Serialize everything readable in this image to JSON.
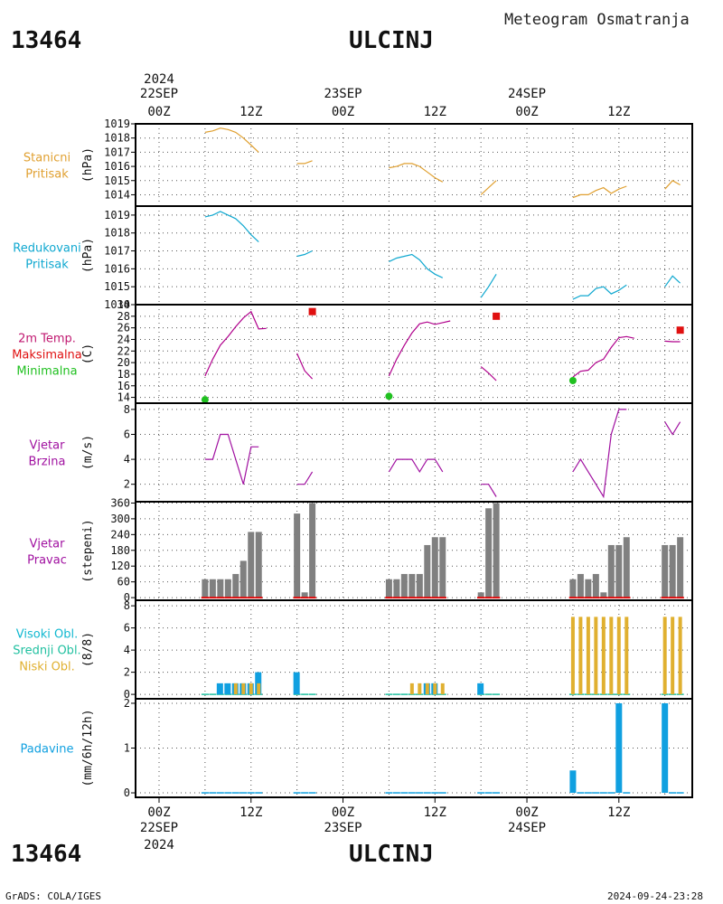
{
  "header": {
    "station_id": "13464",
    "station_name": "ULCINJ",
    "doc_title": "Meteogram Osmatranja"
  },
  "footer": {
    "station_id": "13464",
    "station_name": "ULCINJ",
    "credit": "GrADS: COLA/IGES",
    "timestamp": "2024-09-24-23:28"
  },
  "time_axis": {
    "top_year": "2024",
    "bottom_year": "2024",
    "ticks": [
      {
        "h": 0,
        "label": "00Z",
        "date": "22SEP"
      },
      {
        "h": 12,
        "label": "12Z"
      },
      {
        "h": 24,
        "label": "00Z",
        "date": "23SEP"
      },
      {
        "h": 36,
        "label": "12Z"
      },
      {
        "h": 48,
        "label": "00Z",
        "date": "24SEP"
      },
      {
        "h": 60,
        "label": "12Z"
      }
    ]
  },
  "colors": {
    "station_pressure": "#e0a030",
    "reduced_pressure": "#10a8d0",
    "temp_line": "#b0008c",
    "tmax": "#e01010",
    "tmin": "#20c020",
    "wind": "#a010a0",
    "wind_dir_bar": "#808080",
    "wind_dir_base": "#e01010",
    "cloud_high": "#10b8d0",
    "cloud_mid": "#20c0a0",
    "cloud_low": "#e0b030",
    "cloud_blue_bar": "#10a0e0",
    "precip": "#10a0e0"
  },
  "chart_data": [
    {
      "id": "station_pressure",
      "type": "line",
      "labels": [
        "Stanicni",
        "Pritisak"
      ],
      "ylabel": "(hPa)",
      "ylim": [
        1013.2,
        1019
      ],
      "yticks": [
        1014,
        1015,
        1016,
        1017,
        1018,
        1019
      ],
      "series": [
        {
          "segments": [
            [
              [
                6,
                1018.4
              ],
              [
                7,
                1018.5
              ],
              [
                8,
                1018.7
              ],
              [
                9,
                1018.6
              ],
              [
                10,
                1018.4
              ],
              [
                11,
                1018.0
              ],
              [
                12,
                1017.5
              ],
              [
                13,
                1017.0
              ]
            ],
            [
              [
                18,
                1016.2
              ],
              [
                19,
                1016.2
              ],
              [
                20,
                1016.4
              ]
            ],
            [
              [
                30,
                1015.9
              ],
              [
                31,
                1016.0
              ],
              [
                32,
                1016.2
              ],
              [
                33,
                1016.2
              ],
              [
                34,
                1016.0
              ],
              [
                35,
                1015.6
              ],
              [
                36,
                1015.2
              ],
              [
                37,
                1014.9
              ]
            ],
            [
              [
                42,
                1014.0
              ],
              [
                43,
                1014.5
              ],
              [
                44,
                1015.0
              ]
            ],
            [
              [
                54,
                1013.8
              ],
              [
                55,
                1014.0
              ],
              [
                56,
                1014.0
              ],
              [
                57,
                1014.3
              ],
              [
                58,
                1014.5
              ],
              [
                59,
                1014.1
              ],
              [
                60,
                1014.4
              ],
              [
                61,
                1014.6
              ]
            ],
            [
              [
                66,
                1014.4
              ],
              [
                67,
                1015.0
              ],
              [
                68,
                1014.7
              ]
            ]
          ]
        }
      ]
    },
    {
      "id": "reduced_pressure",
      "type": "line",
      "labels": [
        "Redukovani",
        "Pritisak"
      ],
      "ylabel": "(hPa)",
      "ylim": [
        1014.0,
        1019.5
      ],
      "yticks": [
        1014,
        1015,
        1016,
        1017,
        1018,
        1019
      ],
      "series": [
        {
          "segments": [
            [
              [
                6,
                1018.9
              ],
              [
                7,
                1019.0
              ],
              [
                8,
                1019.2
              ],
              [
                9,
                1019.0
              ],
              [
                10,
                1018.8
              ],
              [
                11,
                1018.4
              ],
              [
                12,
                1017.9
              ],
              [
                13,
                1017.5
              ]
            ],
            [
              [
                18,
                1016.7
              ],
              [
                19,
                1016.8
              ],
              [
                20,
                1017.0
              ]
            ],
            [
              [
                30,
                1016.4
              ],
              [
                31,
                1016.6
              ],
              [
                32,
                1016.7
              ],
              [
                33,
                1016.8
              ],
              [
                34,
                1016.5
              ],
              [
                35,
                1016.0
              ],
              [
                36,
                1015.7
              ],
              [
                37,
                1015.5
              ]
            ],
            [
              [
                42,
                1014.4
              ],
              [
                43,
                1015.0
              ],
              [
                44,
                1015.7
              ]
            ],
            [
              [
                54,
                1014.3
              ],
              [
                55,
                1014.5
              ],
              [
                56,
                1014.5
              ],
              [
                57,
                1014.9
              ],
              [
                58,
                1015.0
              ],
              [
                59,
                1014.6
              ],
              [
                60,
                1014.8
              ],
              [
                61,
                1015.1
              ]
            ],
            [
              [
                66,
                1015.0
              ],
              [
                67,
                1015.6
              ],
              [
                68,
                1015.2
              ]
            ]
          ]
        }
      ]
    },
    {
      "id": "temperature",
      "type": "line",
      "labels": [
        "2m Temp.",
        "Maksimalna",
        "Minimalna"
      ],
      "ylabel": "(C)",
      "ylim": [
        13,
        30
      ],
      "yticks": [
        14,
        16,
        18,
        20,
        22,
        24,
        26,
        28,
        30
      ],
      "series": [
        {
          "segments": [
            [
              [
                6,
                17.7
              ],
              [
                7,
                20.6
              ],
              [
                8,
                23.0
              ],
              [
                9,
                24.5
              ],
              [
                10,
                26.2
              ],
              [
                11,
                27.7
              ],
              [
                12,
                28.8
              ],
              [
                13,
                25.8
              ],
              [
                14,
                25.9
              ]
            ],
            [
              [
                18,
                21.6
              ],
              [
                19,
                18.6
              ],
              [
                20,
                17.2
              ]
            ],
            [
              [
                30,
                17.7
              ],
              [
                31,
                20.6
              ],
              [
                32,
                23.0
              ],
              [
                33,
                25.1
              ],
              [
                34,
                26.7
              ],
              [
                35,
                27.0
              ],
              [
                36,
                26.6
              ],
              [
                37,
                26.9
              ],
              [
                38,
                27.2
              ]
            ],
            [
              [
                42,
                19.3
              ],
              [
                43,
                18.2
              ],
              [
                44,
                16.9
              ]
            ],
            [
              [
                54,
                17.5
              ],
              [
                55,
                18.5
              ],
              [
                56,
                18.7
              ],
              [
                57,
                20.0
              ],
              [
                58,
                20.6
              ],
              [
                59,
                22.6
              ],
              [
                60,
                24.3
              ],
              [
                61,
                24.5
              ],
              [
                62,
                24.2
              ]
            ],
            [
              [
                66,
                23.7
              ],
              [
                67,
                23.6
              ],
              [
                68,
                23.6
              ]
            ]
          ]
        }
      ],
      "tmax": [
        [
          20,
          28.8
        ],
        [
          44,
          28.0
        ],
        [
          68,
          25.6
        ]
      ],
      "tmin": [
        [
          6,
          13.6
        ],
        [
          30,
          14.2
        ],
        [
          54,
          16.9
        ]
      ]
    },
    {
      "id": "wind_speed",
      "type": "line",
      "labels": [
        "Vjetar",
        "Brzina"
      ],
      "ylabel": "(m/s)",
      "ylim": [
        0.6,
        8.5
      ],
      "yticks": [
        2,
        4,
        6,
        8
      ],
      "series": [
        {
          "segments": [
            [
              [
                6,
                4
              ],
              [
                7,
                4
              ],
              [
                8,
                6
              ],
              [
                9,
                6
              ],
              [
                10,
                4
              ],
              [
                11,
                2
              ],
              [
                12,
                5
              ],
              [
                13,
                5
              ]
            ],
            [
              [
                18,
                2
              ],
              [
                19,
                2
              ],
              [
                20,
                3
              ]
            ],
            [
              [
                30,
                3
              ],
              [
                31,
                4
              ],
              [
                32,
                4
              ],
              [
                33,
                4
              ],
              [
                34,
                3
              ],
              [
                35,
                4
              ],
              [
                36,
                4
              ],
              [
                37,
                3
              ]
            ],
            [
              [
                42,
                2
              ],
              [
                43,
                2
              ],
              [
                44,
                1
              ]
            ],
            [
              [
                54,
                3
              ],
              [
                55,
                4
              ],
              [
                56,
                3
              ],
              [
                57,
                2
              ],
              [
                58,
                1
              ],
              [
                59,
                6
              ],
              [
                60,
                8
              ],
              [
                61,
                8
              ]
            ],
            [
              [
                66,
                7
              ],
              [
                67,
                6
              ],
              [
                68,
                7
              ]
            ]
          ]
        }
      ]
    },
    {
      "id": "wind_direction",
      "type": "bar",
      "labels": [
        "Vjetar",
        "Pravac"
      ],
      "ylabel": "(stepeni)",
      "ylim": [
        -10,
        365
      ],
      "yticks": [
        0,
        60,
        120,
        180,
        240,
        300,
        360
      ],
      "bars": [
        [
          6,
          70
        ],
        [
          7,
          70
        ],
        [
          8,
          70
        ],
        [
          9,
          70
        ],
        [
          10,
          90
        ],
        [
          11,
          140
        ],
        [
          12,
          250
        ],
        [
          13,
          250
        ],
        [
          18,
          320
        ],
        [
          19,
          20
        ],
        [
          20,
          360
        ],
        [
          30,
          70
        ],
        [
          31,
          70
        ],
        [
          32,
          90
        ],
        [
          33,
          90
        ],
        [
          34,
          90
        ],
        [
          35,
          200
        ],
        [
          36,
          230
        ],
        [
          37,
          230
        ],
        [
          42,
          20
        ],
        [
          43,
          340
        ],
        [
          44,
          360
        ],
        [
          54,
          70
        ],
        [
          55,
          90
        ],
        [
          56,
          70
        ],
        [
          57,
          90
        ],
        [
          58,
          20
        ],
        [
          59,
          200
        ],
        [
          60,
          200
        ],
        [
          61,
          230
        ],
        [
          66,
          200
        ],
        [
          67,
          200
        ],
        [
          68,
          230
        ]
      ]
    },
    {
      "id": "clouds",
      "type": "bar",
      "labels": [
        "Visoki Obl.",
        "Srednji Obl.",
        "Niski Obl."
      ],
      "ylabel": "(8/8)",
      "ylim": [
        -0.4,
        8.5
      ],
      "yticks": [
        0,
        2,
        4,
        6,
        8
      ],
      "blue_bars": [
        [
          8,
          1
        ],
        [
          9,
          1
        ],
        [
          10,
          1
        ],
        [
          11,
          1
        ],
        [
          12,
          1
        ],
        [
          13,
          2
        ],
        [
          18,
          2
        ],
        [
          42,
          1
        ],
        [
          35,
          1
        ],
        [
          36,
          1
        ]
      ],
      "low_bars": [
        [
          10,
          1
        ],
        [
          11,
          1
        ],
        [
          12,
          1
        ],
        [
          13,
          1
        ],
        [
          33,
          1
        ],
        [
          34,
          1
        ],
        [
          35,
          1
        ],
        [
          36,
          1
        ],
        [
          37,
          1
        ],
        [
          54,
          7
        ],
        [
          55,
          7
        ],
        [
          56,
          7
        ],
        [
          57,
          7
        ],
        [
          58,
          7
        ],
        [
          59,
          7
        ],
        [
          60,
          7
        ],
        [
          61,
          7
        ],
        [
          66,
          7
        ],
        [
          67,
          7
        ],
        [
          68,
          7
        ]
      ],
      "zero_marks": [
        6,
        7,
        8,
        9,
        10,
        11,
        12,
        13,
        18,
        19,
        20,
        30,
        31,
        32,
        33,
        34,
        35,
        36,
        37,
        42,
        43,
        44,
        54,
        55,
        56,
        57,
        58,
        59,
        60,
        61,
        66,
        67,
        68
      ]
    },
    {
      "id": "precipitation",
      "type": "bar",
      "labels": [
        "Padavine"
      ],
      "ylabel": "(mm/6h/12h)",
      "ylim": [
        -0.1,
        2.1
      ],
      "yticks": [
        0,
        1,
        2
      ],
      "bars": [
        [
          54,
          0.5
        ],
        [
          60,
          2.0
        ],
        [
          66,
          2.0
        ]
      ],
      "zero_marks": [
        6,
        7,
        8,
        9,
        10,
        11,
        12,
        13,
        18,
        19,
        20,
        30,
        31,
        32,
        33,
        34,
        35,
        36,
        37,
        42,
        43,
        44,
        55,
        56,
        57,
        58,
        59,
        61,
        67,
        68
      ]
    }
  ]
}
